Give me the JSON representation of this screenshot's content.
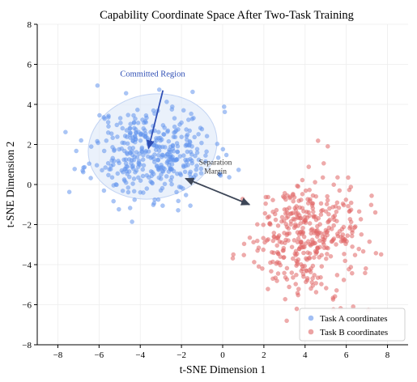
{
  "chart_data": {
    "type": "scatter",
    "title": "Capability Coordinate Space After Two-Task Training",
    "xlabel": "t-SNE Dimension 1",
    "ylabel": "t-SNE Dimension 2",
    "xlim": [
      -9,
      9
    ],
    "ylim": [
      -8,
      8
    ],
    "xticks": [
      -8,
      -6,
      -4,
      -2,
      0,
      2,
      4,
      6,
      8
    ],
    "yticks": [
      -8,
      -6,
      -4,
      -2,
      0,
      2,
      4,
      6,
      8
    ],
    "grid": true,
    "legend_position": "bottom-right",
    "series": [
      {
        "name": "Task A coordinates",
        "color": "#6495ed",
        "center": [
          -3.4,
          1.6
        ],
        "spread": [
          1.5,
          1.15
        ],
        "count": 400,
        "seed": 11
      },
      {
        "name": "Task B coordinates",
        "color": "#e06666",
        "center": [
          4.0,
          -2.6
        ],
        "spread": [
          1.3,
          1.4
        ],
        "count": 400,
        "seed": 29
      }
    ],
    "committed_region": {
      "label": "Committed Region",
      "center": [
        -3.4,
        1.9
      ],
      "radii": [
        6.3,
        5.2
      ],
      "fill": "#dce7f9"
    },
    "annotations": [
      {
        "text": "Committed Region",
        "color": "#2f4fb5",
        "x": -3.4,
        "y": 5.4
      },
      {
        "text": "Separation",
        "color": "#333333",
        "x": -0.35,
        "y": 1.0
      },
      {
        "text": "Margin",
        "color": "#333333",
        "x": -0.35,
        "y": 0.55
      }
    ],
    "arrows": [
      {
        "from": [
          -2.9,
          4.7
        ],
        "to": [
          -3.6,
          1.8
        ],
        "color": "#2f4fb5",
        "style": "single"
      },
      {
        "from": [
          -1.8,
          0.3
        ],
        "to": [
          1.3,
          -1.0
        ],
        "color": "#3d4657",
        "style": "double"
      }
    ]
  }
}
